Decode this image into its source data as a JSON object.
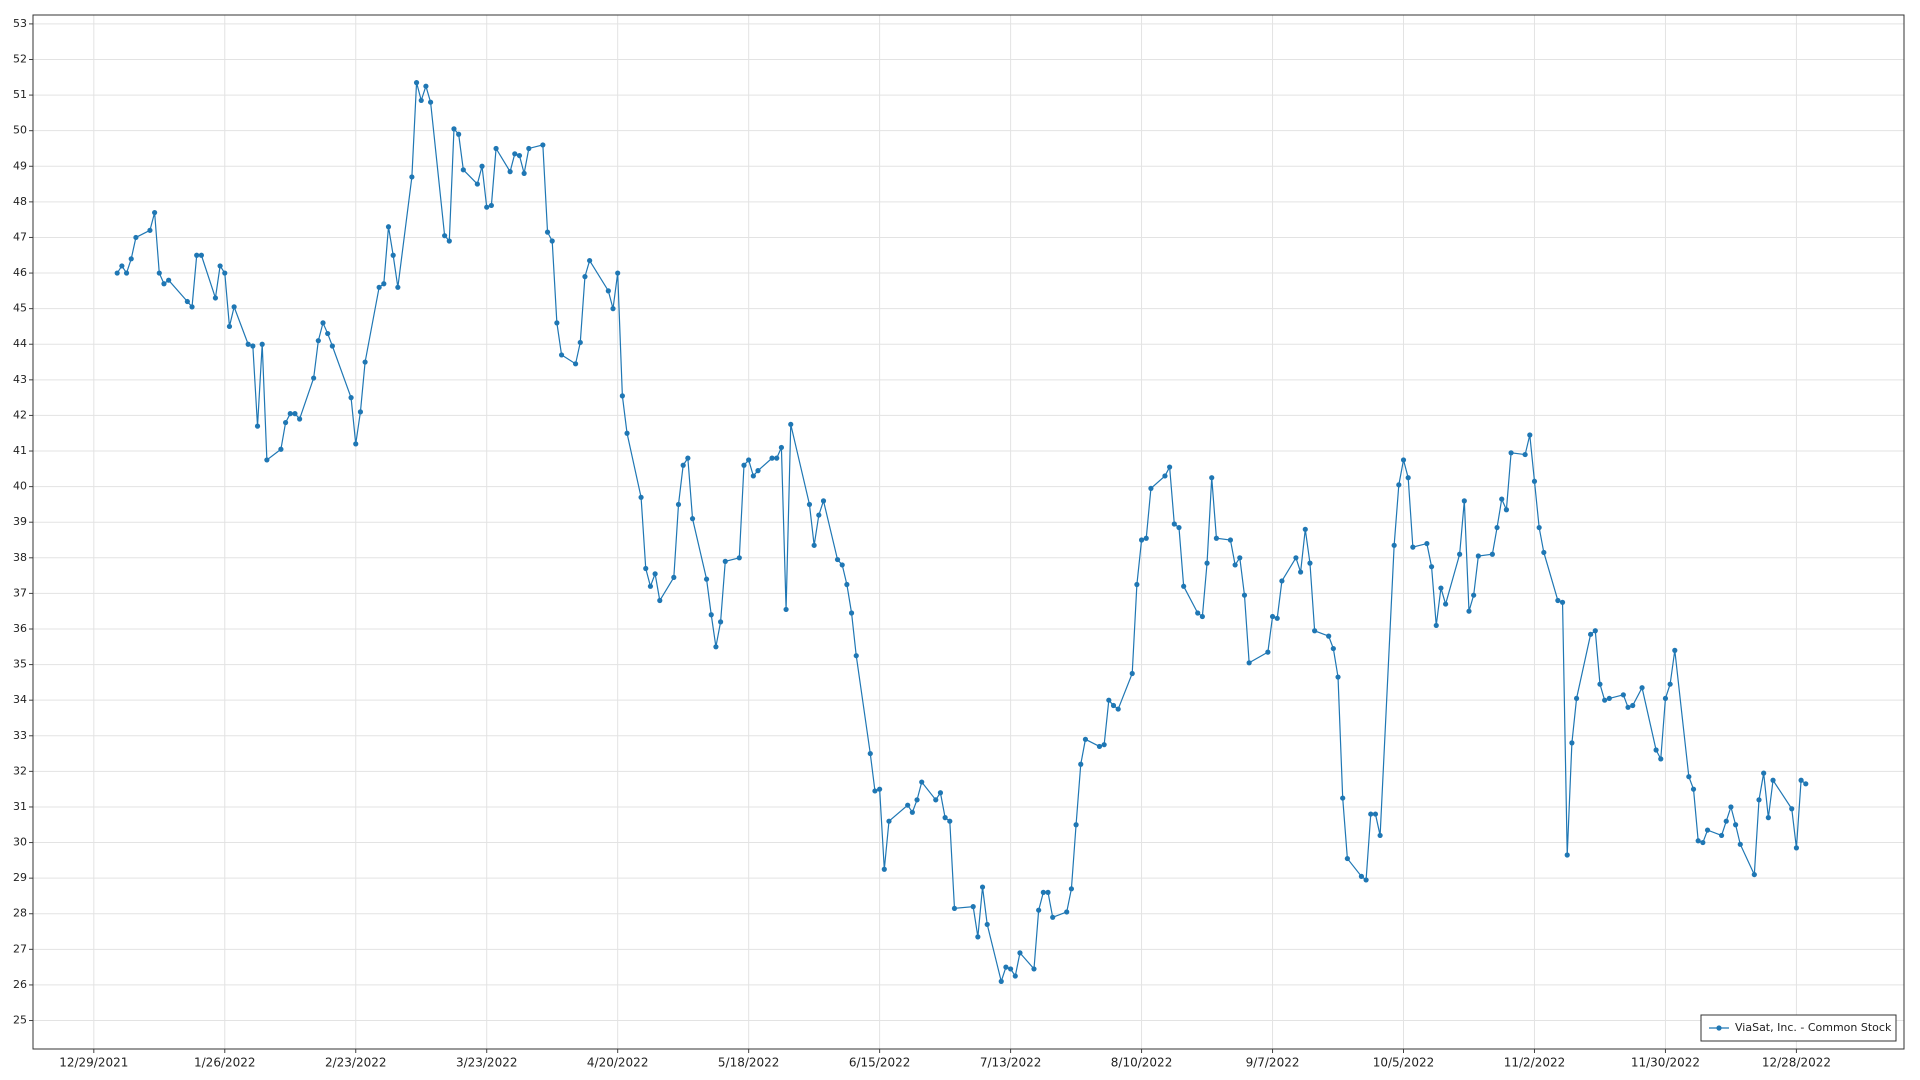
{
  "chart_data": {
    "type": "line",
    "legend_position": "lower right",
    "grid": true,
    "xlim": [
      "12/16/2021",
      "1/20/2023"
    ],
    "xticks": [
      "12/29/2021",
      "1/26/2022",
      "2/23/2022",
      "3/23/2022",
      "4/20/2022",
      "5/18/2022",
      "6/15/2022",
      "7/13/2022",
      "8/10/2022",
      "9/7/2022",
      "10/5/2022",
      "11/2/2022",
      "11/30/2022",
      "12/28/2022"
    ],
    "ylim": [
      24.2,
      53.25
    ],
    "yticks": [
      25,
      26,
      27,
      28,
      29,
      30,
      31,
      32,
      33,
      34,
      35,
      36,
      37,
      38,
      39,
      40,
      41,
      42,
      43,
      44,
      45,
      46,
      47,
      48,
      49,
      50,
      51,
      52,
      53
    ],
    "x": [
      "1/3/2022",
      "1/4/2022",
      "1/5/2022",
      "1/6/2022",
      "1/7/2022",
      "1/10/2022",
      "1/11/2022",
      "1/12/2022",
      "1/13/2022",
      "1/14/2022",
      "1/18/2022",
      "1/19/2022",
      "1/20/2022",
      "1/21/2022",
      "1/24/2022",
      "1/25/2022",
      "1/26/2022",
      "1/27/2022",
      "1/28/2022",
      "1/31/2022",
      "2/1/2022",
      "2/2/2022",
      "2/3/2022",
      "2/4/2022",
      "2/7/2022",
      "2/8/2022",
      "2/9/2022",
      "2/10/2022",
      "2/11/2022",
      "2/14/2022",
      "2/15/2022",
      "2/16/2022",
      "2/17/2022",
      "2/18/2022",
      "2/22/2022",
      "2/23/2022",
      "2/24/2022",
      "2/25/2022",
      "2/28/2022",
      "3/1/2022",
      "3/2/2022",
      "3/3/2022",
      "3/4/2022",
      "3/7/2022",
      "3/8/2022",
      "3/9/2022",
      "3/10/2022",
      "3/11/2022",
      "3/14/2022",
      "3/15/2022",
      "3/16/2022",
      "3/17/2022",
      "3/18/2022",
      "3/21/2022",
      "3/22/2022",
      "3/23/2022",
      "3/24/2022",
      "3/25/2022",
      "3/28/2022",
      "3/29/2022",
      "3/30/2022",
      "3/31/2022",
      "4/1/2022",
      "4/4/2022",
      "4/5/2022",
      "4/6/2022",
      "4/7/2022",
      "4/8/2022",
      "4/11/2022",
      "4/12/2022",
      "4/13/2022",
      "4/14/2022",
      "4/18/2022",
      "4/19/2022",
      "4/20/2022",
      "4/21/2022",
      "4/22/2022",
      "4/25/2022",
      "4/26/2022",
      "4/27/2022",
      "4/28/2022",
      "4/29/2022",
      "5/2/2022",
      "5/3/2022",
      "5/4/2022",
      "5/5/2022",
      "5/6/2022",
      "5/9/2022",
      "5/10/2022",
      "5/11/2022",
      "5/12/2022",
      "5/13/2022",
      "5/16/2022",
      "5/17/2022",
      "5/18/2022",
      "5/19/2022",
      "5/20/2022",
      "5/23/2022",
      "5/24/2022",
      "5/25/2022",
      "5/26/2022",
      "5/27/2022",
      "5/31/2022",
      "6/1/2022",
      "6/2/2022",
      "6/3/2022",
      "6/6/2022",
      "6/7/2022",
      "6/8/2022",
      "6/9/2022",
      "6/10/2022",
      "6/13/2022",
      "6/14/2022",
      "6/15/2022",
      "6/16/2022",
      "6/17/2022",
      "6/21/2022",
      "6/22/2022",
      "6/23/2022",
      "6/24/2022",
      "6/27/2022",
      "6/28/2022",
      "6/29/2022",
      "6/30/2022",
      "7/1/2022",
      "7/5/2022",
      "7/6/2022",
      "7/7/2022",
      "7/8/2022",
      "7/11/2022",
      "7/12/2022",
      "7/13/2022",
      "7/14/2022",
      "7/15/2022",
      "7/18/2022",
      "7/19/2022",
      "7/20/2022",
      "7/21/2022",
      "7/22/2022",
      "7/25/2022",
      "7/26/2022",
      "7/27/2022",
      "7/28/2022",
      "7/29/2022",
      "8/1/2022",
      "8/2/2022",
      "8/3/2022",
      "8/4/2022",
      "8/5/2022",
      "8/8/2022",
      "8/9/2022",
      "8/10/2022",
      "8/11/2022",
      "8/12/2022",
      "8/15/2022",
      "8/16/2022",
      "8/17/2022",
      "8/18/2022",
      "8/19/2022",
      "8/22/2022",
      "8/23/2022",
      "8/24/2022",
      "8/25/2022",
      "8/26/2022",
      "8/29/2022",
      "8/30/2022",
      "8/31/2022",
      "9/1/2022",
      "9/2/2022",
      "9/6/2022",
      "9/7/2022",
      "9/8/2022",
      "9/9/2022",
      "9/12/2022",
      "9/13/2022",
      "9/14/2022",
      "9/15/2022",
      "9/16/2022",
      "9/19/2022",
      "9/20/2022",
      "9/21/2022",
      "9/22/2022",
      "9/23/2022",
      "9/26/2022",
      "9/27/2022",
      "9/28/2022",
      "9/29/2022",
      "9/30/2022",
      "10/3/2022",
      "10/4/2022",
      "10/5/2022",
      "10/6/2022",
      "10/7/2022",
      "10/10/2022",
      "10/11/2022",
      "10/12/2022",
      "10/13/2022",
      "10/14/2022",
      "10/17/2022",
      "10/18/2022",
      "10/19/2022",
      "10/20/2022",
      "10/21/2022",
      "10/24/2022",
      "10/25/2022",
      "10/26/2022",
      "10/27/2022",
      "10/28/2022",
      "10/31/2022",
      "11/1/2022",
      "11/2/2022",
      "11/3/2022",
      "11/4/2022",
      "11/7/2022",
      "11/8/2022",
      "11/9/2022",
      "11/10/2022",
      "11/11/2022",
      "11/14/2022",
      "11/15/2022",
      "11/16/2022",
      "11/17/2022",
      "11/18/2022",
      "11/21/2022",
      "11/22/2022",
      "11/23/2022",
      "11/25/2022",
      "11/28/2022",
      "11/29/2022",
      "11/30/2022",
      "12/1/2022",
      "12/2/2022",
      "12/5/2022",
      "12/6/2022",
      "12/7/2022",
      "12/8/2022",
      "12/9/2022",
      "12/12/2022",
      "12/13/2022",
      "12/14/2022",
      "12/15/2022",
      "12/16/2022",
      "12/19/2022",
      "12/20/2022",
      "12/21/2022",
      "12/22/2022",
      "12/23/2022",
      "12/27/2022",
      "12/28/2022",
      "12/29/2022",
      "12/30/2022"
    ],
    "series": [
      {
        "name": "ViaSat, Inc. - Common Stock",
        "color": "#1f77b4",
        "values": [
          46.0,
          46.2,
          46.0,
          46.4,
          47.0,
          47.2,
          47.7,
          46.0,
          45.7,
          45.8,
          45.2,
          45.05,
          46.5,
          46.5,
          45.3,
          46.2,
          46.0,
          44.5,
          45.05,
          44.0,
          43.95,
          41.7,
          44.0,
          40.75,
          41.05,
          41.8,
          42.05,
          42.05,
          41.9,
          43.05,
          44.1,
          44.6,
          44.3,
          43.95,
          42.5,
          41.2,
          42.1,
          43.5,
          45.6,
          45.7,
          47.3,
          46.5,
          45.6,
          48.7,
          51.35,
          50.85,
          51.25,
          50.8,
          47.05,
          46.9,
          50.05,
          49.9,
          48.9,
          48.5,
          49.0,
          47.85,
          47.9,
          49.5,
          48.85,
          49.35,
          49.3,
          48.8,
          49.5,
          49.6,
          47.15,
          46.9,
          44.6,
          43.7,
          43.45,
          44.05,
          45.9,
          46.35,
          45.5,
          45.0,
          46.0,
          42.55,
          41.5,
          39.7,
          37.7,
          37.2,
          37.55,
          36.8,
          37.45,
          39.5,
          40.6,
          40.8,
          39.1,
          37.4,
          36.4,
          35.5,
          36.2,
          37.9,
          38.0,
          40.6,
          40.75,
          40.3,
          40.45,
          40.8,
          40.8,
          41.1,
          36.55,
          41.75,
          39.5,
          38.35,
          39.2,
          39.6,
          37.95,
          37.8,
          37.25,
          36.45,
          35.25,
          32.5,
          31.45,
          31.5,
          29.25,
          30.6,
          31.05,
          30.85,
          31.2,
          31.7,
          31.2,
          31.4,
          30.7,
          30.6,
          28.15,
          28.2,
          27.35,
          28.75,
          27.7,
          26.1,
          26.5,
          26.45,
          26.25,
          26.9,
          26.45,
          28.1,
          28.6,
          28.6,
          27.9,
          28.05,
          28.7,
          30.5,
          32.2,
          32.9,
          32.7,
          32.75,
          34.0,
          33.85,
          33.75,
          34.75,
          37.25,
          38.5,
          38.55,
          39.95,
          40.3,
          40.55,
          38.95,
          38.85,
          37.2,
          36.45,
          36.35,
          37.85,
          40.25,
          38.55,
          38.5,
          37.8,
          38.0,
          36.95,
          35.05,
          35.35,
          36.35,
          36.3,
          37.35,
          38.0,
          37.6,
          38.8,
          37.85,
          35.95,
          35.8,
          35.45,
          34.65,
          31.25,
          29.55,
          29.05,
          28.95,
          30.8,
          30.8,
          30.2,
          38.35,
          40.05,
          40.75,
          40.25,
          38.3,
          38.4,
          37.75,
          36.1,
          37.15,
          36.7,
          38.1,
          39.6,
          36.5,
          36.95,
          38.05,
          38.1,
          38.85,
          39.65,
          39.35,
          40.95,
          40.9,
          41.45,
          40.15,
          38.85,
          38.15,
          36.8,
          36.75,
          29.65,
          32.8,
          34.05,
          35.85,
          35.95,
          34.45,
          34.0,
          34.05,
          34.15,
          33.8,
          33.85,
          34.35,
          32.6,
          32.35,
          34.05,
          34.45,
          35.4,
          31.85,
          31.5,
          30.05,
          30.0,
          30.35,
          30.2,
          30.6,
          31.0,
          30.5,
          29.95,
          29.1,
          31.2,
          31.95,
          30.7,
          31.75,
          30.95,
          29.85,
          31.75,
          31.65
        ]
      }
    ]
  }
}
